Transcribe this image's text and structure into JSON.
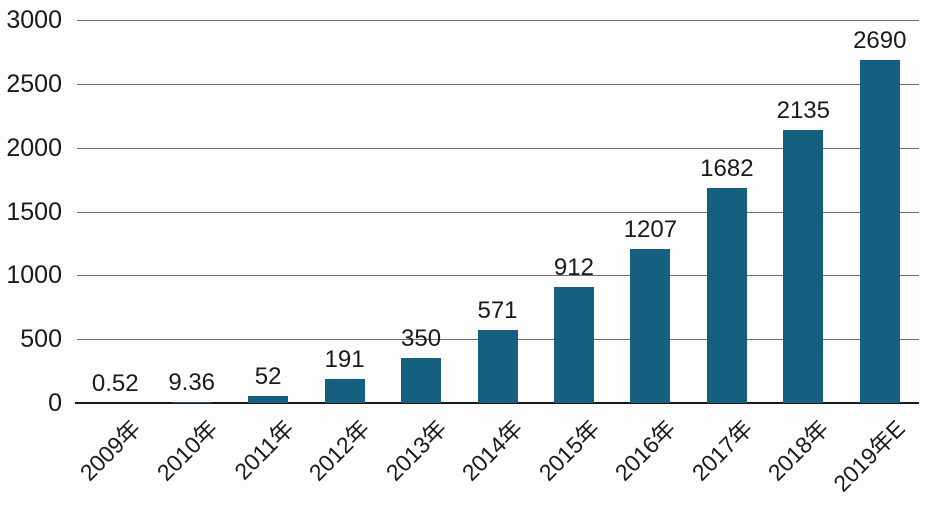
{
  "chart_data": {
    "type": "bar",
    "title": "",
    "xlabel": "",
    "ylabel": "",
    "categories": [
      "2009年",
      "2010年",
      "2011年",
      "2012年",
      "2013年",
      "2014年",
      "2015年",
      "2016年",
      "2017年",
      "2018年",
      "2019年E"
    ],
    "values": [
      0.52,
      9.36,
      52,
      191,
      350,
      571,
      912,
      1207,
      1682,
      2135,
      2690
    ],
    "data_labels": [
      "0.52",
      "9.36",
      "52",
      "191",
      "350",
      "571",
      "912",
      "1207",
      "1682",
      "2135",
      "2690"
    ],
    "ylim": [
      0,
      3000
    ],
    "yticks": [
      0,
      500,
      1000,
      1500,
      2000,
      2500,
      3000
    ],
    "ytick_labels": [
      "0",
      "500",
      "1000",
      "1500",
      "2000",
      "2500",
      "3000"
    ],
    "grid": true,
    "legend_position": "none",
    "x_label_rotation_deg": 45,
    "colors": {
      "bar": "#15607e",
      "gridline": "#707070",
      "axis": "#1a1a1a",
      "text": "#1a1a1a",
      "background": "#fdfdfd"
    }
  }
}
